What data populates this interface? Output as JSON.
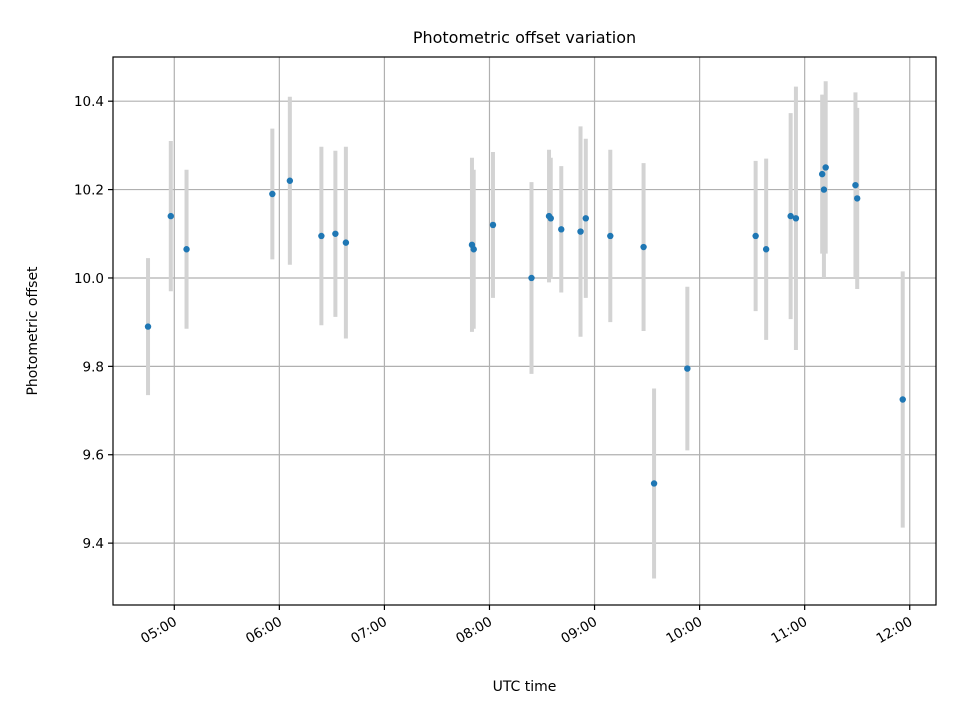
{
  "chart_data": {
    "type": "scatter",
    "title": "Photometric offset variation",
    "xlabel": "UTC time",
    "ylabel": "Photometric offset",
    "x_unit": "hours UTC",
    "xlim": [
      "04:25",
      "12:15"
    ],
    "ylim": [
      9.26,
      10.5
    ],
    "x_ticks": [
      "05:00",
      "06:00",
      "07:00",
      "08:00",
      "09:00",
      "10:00",
      "11:00",
      "12:00"
    ],
    "y_ticks": [
      "9.4",
      "9.6",
      "9.8",
      "10.0",
      "10.2",
      "10.4"
    ],
    "y_tick_values": [
      9.4,
      9.6,
      9.8,
      10.0,
      10.2,
      10.4
    ],
    "grid": true,
    "colors": {
      "marker": "#1f77b4",
      "errorbar": "#d3d3d3",
      "grid": "#b0b0b0"
    },
    "series": [
      {
        "points": [
          {
            "t": "04:45",
            "y": 9.89,
            "yerr": 0.155
          },
          {
            "t": "04:58",
            "y": 10.14,
            "yerr": 0.17
          },
          {
            "t": "05:07",
            "y": 10.065,
            "yerr": 0.18
          },
          {
            "t": "05:56",
            "y": 10.19,
            "yerr": 0.148
          },
          {
            "t": "06:06",
            "y": 10.22,
            "yerr": 0.19
          },
          {
            "t": "06:24",
            "y": 10.095,
            "yerr": 0.202
          },
          {
            "t": "06:32",
            "y": 10.1,
            "yerr": 0.188
          },
          {
            "t": "06:38",
            "y": 10.08,
            "yerr": 0.217
          },
          {
            "t": "07:50",
            "y": 10.075,
            "yerr": 0.197
          },
          {
            "t": "07:51",
            "y": 10.065,
            "yerr": 0.18
          },
          {
            "t": "08:02",
            "y": 10.12,
            "yerr": 0.165
          },
          {
            "t": "08:24",
            "y": 10.0,
            "yerr": 0.217
          },
          {
            "t": "08:34",
            "y": 10.14,
            "yerr": 0.15
          },
          {
            "t": "08:35",
            "y": 10.135,
            "yerr": 0.137
          },
          {
            "t": "08:41",
            "y": 10.11,
            "yerr": 0.143
          },
          {
            "t": "08:52",
            "y": 10.105,
            "yerr": 0.238
          },
          {
            "t": "08:55",
            "y": 10.135,
            "yerr": 0.18
          },
          {
            "t": "09:09",
            "y": 10.095,
            "yerr": 0.195
          },
          {
            "t": "09:28",
            "y": 10.07,
            "yerr": 0.19
          },
          {
            "t": "09:34",
            "y": 9.535,
            "yerr": 0.215
          },
          {
            "t": "09:53",
            "y": 9.795,
            "yerr": 0.185
          },
          {
            "t": "10:32",
            "y": 10.095,
            "yerr": 0.17
          },
          {
            "t": "10:38",
            "y": 10.065,
            "yerr": 0.205
          },
          {
            "t": "10:52",
            "y": 10.14,
            "yerr": 0.233
          },
          {
            "t": "10:55",
            "y": 10.135,
            "yerr": 0.298
          },
          {
            "t": "11:10",
            "y": 10.235,
            "yerr": 0.18
          },
          {
            "t": "11:11",
            "y": 10.2,
            "yerr": 0.2
          },
          {
            "t": "11:12",
            "y": 10.25,
            "yerr": 0.195
          },
          {
            "t": "11:29",
            "y": 10.21,
            "yerr": 0.21
          },
          {
            "t": "11:30",
            "y": 10.18,
            "yerr": 0.205
          },
          {
            "t": "11:56",
            "y": 9.725,
            "yerr": 0.29
          }
        ]
      }
    ]
  }
}
